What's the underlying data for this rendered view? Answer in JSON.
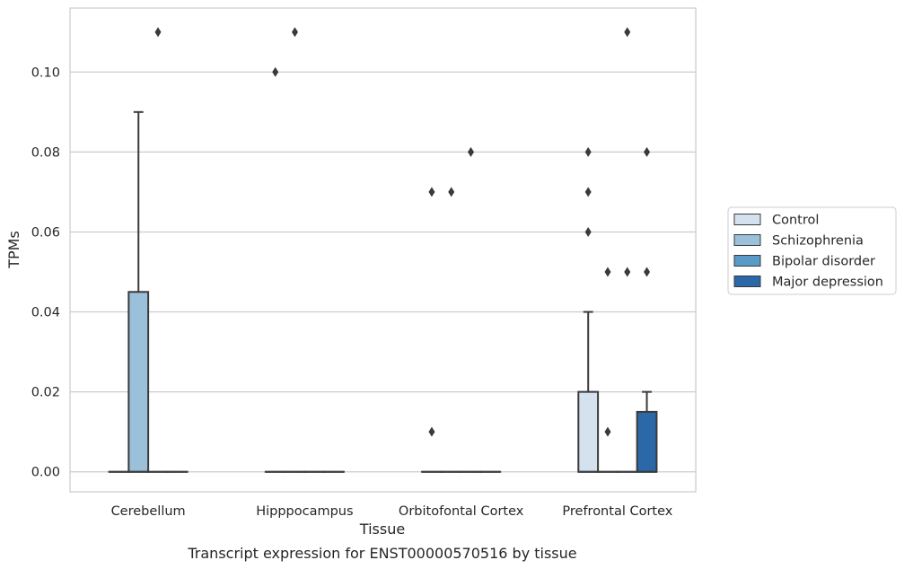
{
  "chart_data": {
    "type": "box",
    "title": "",
    "caption": "Transcript expression for ENST00000570516 by tissue",
    "xlabel": "Tissue",
    "ylabel": "TPMs",
    "ylim": [
      -0.005,
      0.116
    ],
    "yticks": [
      0.0,
      0.02,
      0.04,
      0.06,
      0.08,
      0.1
    ],
    "ytick_labels": [
      "0.00",
      "0.02",
      "0.04",
      "0.06",
      "0.08",
      "0.10"
    ],
    "grid": "horizontal",
    "legend_position": "right",
    "categories": [
      "Cerebellum",
      "Hipppocampus",
      "Orbitofontal Cortex",
      "Prefrontal Cortex"
    ],
    "series": [
      {
        "name": "Control",
        "color": "#d4e2f0",
        "boxes": [
          {
            "category": "Cerebellum",
            "q1": 0,
            "median": 0,
            "q3": 0,
            "whisker_low": 0,
            "whisker_high": 0,
            "outliers": []
          },
          {
            "category": "Hipppocampus",
            "q1": 0,
            "median": 0,
            "q3": 0,
            "whisker_low": 0,
            "whisker_high": 0,
            "outliers": [
              0.1
            ]
          },
          {
            "category": "Orbitofontal Cortex",
            "q1": 0,
            "median": 0,
            "q3": 0,
            "whisker_low": 0,
            "whisker_high": 0,
            "outliers": [
              0.07,
              0.01
            ]
          },
          {
            "category": "Prefrontal Cortex",
            "q1": 0,
            "median": 0,
            "q3": 0.02,
            "whisker_low": 0,
            "whisker_high": 0.04,
            "outliers": [
              0.08,
              0.07,
              0.06
            ]
          }
        ]
      },
      {
        "name": "Schizophrenia",
        "color": "#9ac0da",
        "boxes": [
          {
            "category": "Cerebellum",
            "q1": 0,
            "median": 0,
            "q3": 0.045,
            "whisker_low": 0,
            "whisker_high": 0.09,
            "outliers": []
          },
          {
            "category": "Hipppocampus",
            "q1": 0,
            "median": 0,
            "q3": 0,
            "whisker_low": 0,
            "whisker_high": 0,
            "outliers": [
              0.11
            ]
          },
          {
            "category": "Orbitofontal Cortex",
            "q1": 0,
            "median": 0,
            "q3": 0,
            "whisker_low": 0,
            "whisker_high": 0,
            "outliers": [
              0.07
            ]
          },
          {
            "category": "Prefrontal Cortex",
            "q1": 0,
            "median": 0,
            "q3": 0,
            "whisker_low": 0,
            "whisker_high": 0,
            "outliers": [
              0.05,
              0.01
            ]
          }
        ]
      },
      {
        "name": "Bipolar disorder",
        "color": "#5a9ac6",
        "boxes": [
          {
            "category": "Cerebellum",
            "q1": 0,
            "median": 0,
            "q3": 0,
            "whisker_low": 0,
            "whisker_high": 0,
            "outliers": [
              0.11
            ]
          },
          {
            "category": "Hipppocampus",
            "q1": 0,
            "median": 0,
            "q3": 0,
            "whisker_low": 0,
            "whisker_high": 0,
            "outliers": []
          },
          {
            "category": "Orbitofontal Cortex",
            "q1": 0,
            "median": 0,
            "q3": 0,
            "whisker_low": 0,
            "whisker_high": 0,
            "outliers": [
              0.08
            ]
          },
          {
            "category": "Prefrontal Cortex",
            "q1": 0,
            "median": 0,
            "q3": 0,
            "whisker_low": 0,
            "whisker_high": 0,
            "outliers": [
              0.11,
              0.05
            ]
          }
        ]
      },
      {
        "name": "Major depression",
        "color": "#2a68a8",
        "boxes": [
          {
            "category": "Cerebellum",
            "q1": 0,
            "median": 0,
            "q3": 0,
            "whisker_low": 0,
            "whisker_high": 0,
            "outliers": []
          },
          {
            "category": "Hipppocampus",
            "q1": 0,
            "median": 0,
            "q3": 0,
            "whisker_low": 0,
            "whisker_high": 0,
            "outliers": []
          },
          {
            "category": "Orbitofontal Cortex",
            "q1": 0,
            "median": 0,
            "q3": 0,
            "whisker_low": 0,
            "whisker_high": 0,
            "outliers": []
          },
          {
            "category": "Prefrontal Cortex",
            "q1": 0,
            "median": 0,
            "q3": 0.015,
            "whisker_low": 0,
            "whisker_high": 0.02,
            "outliers": [
              0.08,
              0.05
            ]
          }
        ]
      }
    ]
  }
}
